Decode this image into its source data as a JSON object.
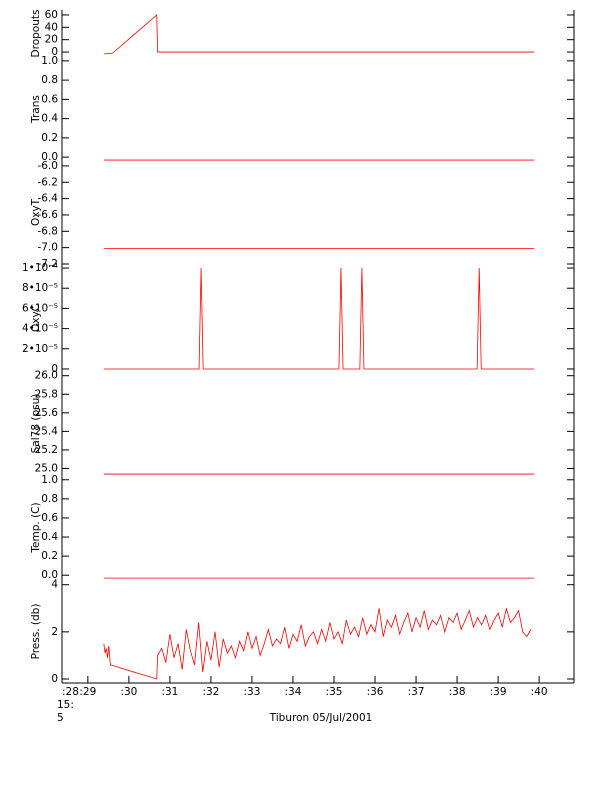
{
  "chart_data": [
    {
      "type": "line",
      "ylabel": "Dropouts",
      "color": "#ff0000",
      "x": [
        29.39,
        29.6,
        30.68,
        30.7,
        39.88
      ],
      "values": [
        -3,
        -2,
        60,
        0,
        0
      ],
      "xlim": [
        28.37,
        40.85
      ],
      "ylim": [
        -8,
        68
      ],
      "yticks": [
        0,
        20,
        40,
        60
      ]
    },
    {
      "type": "line",
      "ylabel": "Trans",
      "color": "#ff0000",
      "x": [
        29.39,
        39.88
      ],
      "values": [
        -0.03,
        -0.03
      ],
      "xlim": [
        28.37,
        40.85
      ],
      "ylim": [
        -0.04,
        1.04
      ],
      "yticks": [
        {
          "value": 0,
          "label": "0.0"
        },
        0.2,
        0.4,
        0.6,
        0.8,
        {
          "value": 1,
          "label": "1.0"
        }
      ]
    },
    {
      "type": "line",
      "ylabel": "OxyT",
      "color": "#ff0000",
      "x": [
        29.39,
        39.88
      ],
      "values": [
        -7.01,
        -7.01
      ],
      "xlim": [
        28.37,
        40.85
      ],
      "ylim": [
        -7.2,
        -5.94
      ],
      "yticks": [
        {
          "value": -7.2,
          "label": "-7.2"
        },
        {
          "value": -7.0,
          "label": "-7.0"
        },
        {
          "value": -6.8,
          "label": "-6.8"
        },
        {
          "value": -6.6,
          "label": "-6.6"
        },
        {
          "value": -6.4,
          "label": "-6.4"
        },
        {
          "value": -6.2,
          "label": "-6.2"
        },
        {
          "value": -6.0,
          "label": "-6.0"
        }
      ]
    },
    {
      "type": "line",
      "ylabel": "OxyC",
      "color": "#ff0000",
      "x": [
        29.39,
        31.71,
        31.76,
        31.81,
        35.12,
        35.17,
        35.22,
        35.63,
        35.68,
        35.73,
        38.49,
        38.54,
        38.59,
        39.88
      ],
      "values": [
        0,
        0,
        0.0001,
        0,
        0,
        0.0001,
        0,
        0,
        0.0001,
        0,
        0,
        0.0001,
        0,
        0
      ],
      "xlim": [
        28.37,
        40.85
      ],
      "ylim": [
        -3e-06,
        0.000104
      ],
      "yticks": [
        0,
        {
          "value": 2e-05,
          "label": "2•10⁻⁵"
        },
        {
          "value": 4e-05,
          "label": "4•10⁻⁵"
        },
        {
          "value": 6e-05,
          "label": "6•10⁻⁵"
        },
        {
          "value": 8e-05,
          "label": "8•10⁻⁵"
        },
        {
          "value": 0.0001,
          "label": "1•10⁻⁴"
        }
      ]
    },
    {
      "type": "line",
      "ylabel": "Sal78 (psu)",
      "color": "#ff0000",
      "x": [
        29.39,
        39.88
      ],
      "values": [
        24.94,
        24.94
      ],
      "xlim": [
        28.37,
        40.85
      ],
      "ylim": [
        24.93,
        26.04
      ],
      "yticks": [
        {
          "value": 25,
          "label": "25.0"
        },
        25.2,
        25.4,
        25.6,
        25.8,
        {
          "value": 26,
          "label": "26.0"
        }
      ]
    },
    {
      "type": "line",
      "ylabel": "Temp. (C)",
      "color": "#ff0000",
      "x": [
        29.39,
        39.88
      ],
      "values": [
        -0.03,
        -0.03
      ],
      "xlim": [
        28.37,
        40.85
      ],
      "ylim": [
        -0.05,
        1.05
      ],
      "yticks": [
        {
          "value": 0,
          "label": "0.0"
        },
        0.2,
        0.4,
        0.6,
        0.8,
        {
          "value": 1,
          "label": "1.0"
        }
      ]
    },
    {
      "type": "line",
      "ylabel": "Press. (db)",
      "color": "#ff0000",
      "x": [
        29.39,
        29.42,
        29.45,
        29.48,
        29.51,
        29.55,
        30.68,
        30.7,
        30.8,
        30.9,
        31.0,
        31.1,
        31.2,
        31.3,
        31.4,
        31.5,
        31.6,
        31.7,
        31.8,
        31.9,
        32.0,
        32.1,
        32.2,
        32.3,
        32.4,
        32.5,
        32.6,
        32.7,
        32.8,
        32.9,
        33.0,
        33.1,
        33.2,
        33.3,
        33.4,
        33.5,
        33.6,
        33.7,
        33.8,
        33.9,
        34.0,
        34.1,
        34.2,
        34.3,
        34.4,
        34.5,
        34.6,
        34.7,
        34.8,
        34.9,
        35.0,
        35.1,
        35.2,
        35.3,
        35.4,
        35.5,
        35.6,
        35.7,
        35.8,
        35.9,
        36.0,
        36.1,
        36.2,
        36.3,
        36.4,
        36.5,
        36.6,
        36.7,
        36.8,
        36.9,
        37.0,
        37.1,
        37.2,
        37.3,
        37.4,
        37.5,
        37.6,
        37.7,
        37.8,
        37.9,
        38.0,
        38.1,
        38.2,
        38.3,
        38.4,
        38.5,
        38.6,
        38.7,
        38.8,
        38.9,
        39.0,
        39.1,
        39.2,
        39.3,
        39.4,
        39.5,
        39.6,
        39.7,
        39.8
      ],
      "values": [
        1.5,
        1.1,
        1.3,
        0.9,
        1.4,
        0.6,
        0.0,
        1.0,
        1.3,
        0.7,
        1.9,
        0.9,
        1.5,
        0.4,
        2.1,
        1.2,
        0.6,
        2.4,
        0.3,
        1.6,
        0.8,
        2.0,
        0.5,
        1.7,
        1.1,
        1.4,
        0.9,
        1.6,
        1.2,
        2.0,
        1.3,
        1.8,
        1.0,
        1.5,
        2.1,
        1.4,
        1.7,
        1.5,
        2.2,
        1.3,
        1.9,
        1.6,
        2.3,
        1.4,
        1.8,
        2.0,
        1.5,
        2.1,
        1.6,
        2.4,
        1.7,
        2.0,
        1.5,
        2.5,
        1.9,
        2.2,
        1.8,
        2.6,
        1.9,
        2.3,
        2.0,
        3.0,
        1.8,
        2.5,
        2.2,
        2.7,
        1.9,
        2.4,
        2.8,
        2.0,
        2.6,
        2.2,
        2.9,
        2.1,
        2.5,
        2.3,
        2.7,
        2.0,
        2.6,
        2.4,
        2.8,
        2.1,
        2.5,
        2.9,
        2.2,
        2.6,
        2.3,
        2.7,
        2.1,
        2.5,
        2.8,
        2.2,
        3.0,
        2.4,
        2.6,
        2.9,
        2.0,
        1.8,
        2.1
      ],
      "xlim": [
        28.37,
        40.85
      ],
      "ylim": [
        -0.17,
        4.2
      ],
      "yticks": [
        0,
        2,
        4
      ],
      "xticks": [
        {
          "value": 28.37,
          "label": ":28"
        },
        {
          "value": 29,
          "label": ":29"
        },
        {
          "value": 30,
          "label": ":30"
        },
        {
          "value": 31,
          "label": ":31"
        },
        {
          "value": 32,
          "label": ":32"
        },
        {
          "value": 33,
          "label": ":33"
        },
        {
          "value": 34,
          "label": ":34"
        },
        {
          "value": 35,
          "label": ":35"
        },
        {
          "value": 36,
          "label": ":36"
        },
        {
          "value": 37,
          "label": ":37"
        },
        {
          "value": 38,
          "label": ":38"
        },
        {
          "value": 39,
          "label": ":39"
        },
        {
          "value": 40,
          "label": ":40"
        }
      ],
      "x_tick_sublabels": [
        "15:",
        "5"
      ],
      "xlabel": "Tiburon 05/Jul/2001"
    }
  ]
}
